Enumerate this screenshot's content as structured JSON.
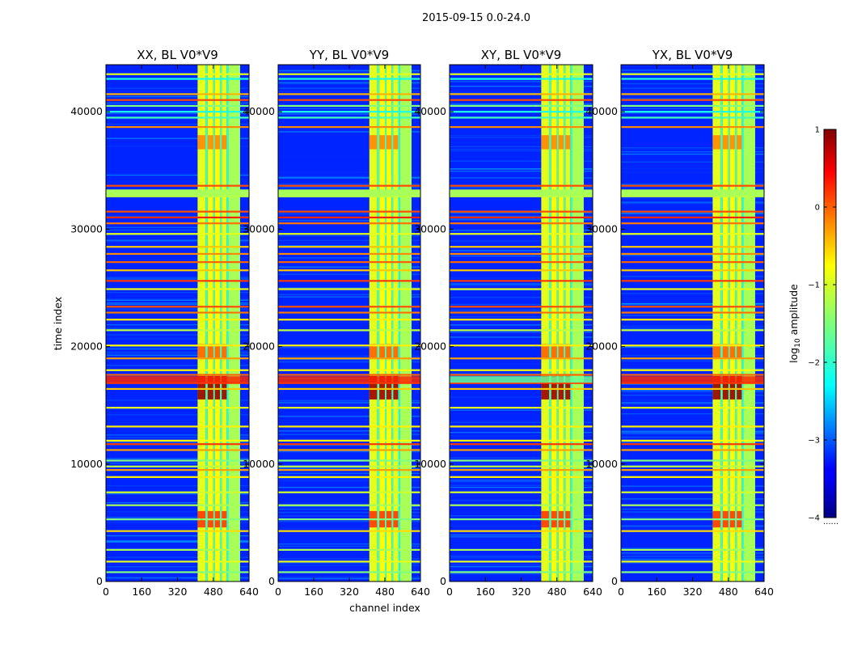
{
  "figure": {
    "suptitle": "2015-09-15 0.0-24.0"
  },
  "chart_data": {
    "type": "heatmap",
    "title": "2015-09-15 0.0-24.0",
    "xlabel": "channel index",
    "ylabel": "time index",
    "xlim": [
      0,
      640
    ],
    "ylim": [
      0,
      44000
    ],
    "x_ticks": [
      0,
      160,
      320,
      480,
      640
    ],
    "x_tick_labels": [
      "0",
      "160",
      "320",
      "480",
      "640"
    ],
    "y_ticks": [
      0,
      10000,
      20000,
      30000,
      40000
    ],
    "y_tick_labels": [
      "0",
      "10000",
      "20000",
      "30000",
      "40000"
    ],
    "colormap": "jet",
    "colorbar": {
      "label": "log10 amplitude",
      "label_base": "log",
      "label_sub": "10",
      "label_rest": " amplitude",
      "range": [
        -4,
        1
      ],
      "ticks": [
        -4,
        -3,
        -2,
        -1,
        0,
        1
      ],
      "tick_labels": [
        "−4",
        "−3",
        "−2",
        "−1",
        "0",
        "1"
      ],
      "minor_label": "......"
    },
    "panels": [
      {
        "title": "XX, BL V0*V9",
        "pol": "XX"
      },
      {
        "title": "YY, BL V0*V9",
        "pol": "YY"
      },
      {
        "title": "XY, BL V0*V9",
        "pol": "XY"
      },
      {
        "title": "YX, BL V0*V9",
        "pol": "YX"
      }
    ],
    "bright_channel_bands": [
      {
        "start": 410,
        "end": 445,
        "level": -1.0
      },
      {
        "start": 445,
        "end": 455,
        "level": -1.8
      },
      {
        "start": 455,
        "end": 480,
        "level": -0.9
      },
      {
        "start": 480,
        "end": 487,
        "level": -1.8
      },
      {
        "start": 487,
        "end": 510,
        "level": -0.9
      },
      {
        "start": 510,
        "end": 518,
        "level": -1.8
      },
      {
        "start": 518,
        "end": 540,
        "level": -1.0
      },
      {
        "start": 540,
        "end": 548,
        "level": -2.0
      },
      {
        "start": 548,
        "end": 600,
        "level": -1.3
      }
    ],
    "background_level": -3.2,
    "rfi_rows": [
      {
        "time": 43200,
        "level": -1.0
      },
      {
        "time": 42800,
        "level": -2.0
      },
      {
        "time": 41500,
        "level": -0.5
      },
      {
        "time": 41000,
        "level": 0.0
      },
      {
        "time": 40500,
        "level": -1.5
      },
      {
        "time": 40000,
        "level": -2.0
      },
      {
        "time": 39500,
        "level": -1.8
      },
      {
        "time": 38700,
        "level": -0.3
      },
      {
        "time": 33700,
        "level": 0.0
      },
      {
        "time": 33200,
        "level": -1.5
      },
      {
        "time": 32800,
        "level": -1.2
      },
      {
        "time": 31500,
        "level": 0.0
      },
      {
        "time": 31000,
        "level": 0.2
      },
      {
        "time": 30500,
        "level": -0.2
      },
      {
        "time": 29600,
        "level": -1.0
      },
      {
        "time": 28500,
        "level": -0.6
      },
      {
        "time": 27900,
        "level": -0.3
      },
      {
        "time": 27200,
        "level": -0.1
      },
      {
        "time": 26500,
        "level": -0.6
      },
      {
        "time": 25600,
        "level": 0.1
      },
      {
        "time": 24900,
        "level": -1.0
      },
      {
        "time": 23400,
        "level": 0.0
      },
      {
        "time": 22900,
        "level": -0.2
      },
      {
        "time": 22300,
        "level": -0.8
      },
      {
        "time": 21400,
        "level": -1.2
      },
      {
        "time": 20100,
        "level": -0.8
      },
      {
        "time": 19000,
        "level": -0.4
      },
      {
        "time": 18000,
        "level": -0.9
      },
      {
        "time": 17600,
        "level": -0.1
      },
      {
        "time": 16900,
        "level": 0.1
      },
      {
        "time": 16400,
        "level": -0.6
      },
      {
        "time": 14800,
        "level": -1.0
      },
      {
        "time": 13200,
        "level": -0.8
      },
      {
        "time": 12000,
        "level": -0.9
      },
      {
        "time": 11700,
        "level": 0.1
      },
      {
        "time": 11200,
        "level": -0.4
      },
      {
        "time": 10300,
        "level": -1.5
      },
      {
        "time": 9800,
        "level": -1.2
      },
      {
        "time": 9500,
        "level": -0.4
      },
      {
        "time": 8900,
        "level": -0.8
      },
      {
        "time": 7600,
        "level": -1.1
      },
      {
        "time": 6500,
        "level": -1.3
      },
      {
        "time": 5300,
        "level": -1.5
      },
      {
        "time": 4300,
        "level": -0.7
      },
      {
        "time": 2700,
        "level": -1.3
      },
      {
        "time": 1700,
        "level": -1.0
      },
      {
        "time": 800,
        "level": -1.5
      }
    ],
    "hot_regions": [
      {
        "t_start": 15500,
        "t_end": 17500,
        "level": 0.9
      },
      {
        "t_start": 4600,
        "t_end": 6000,
        "level": 0.1
      },
      {
        "t_start": 19000,
        "t_end": 20200,
        "level": -0.1
      },
      {
        "t_start": 36800,
        "t_end": 38000,
        "level": -0.3
      }
    ]
  }
}
